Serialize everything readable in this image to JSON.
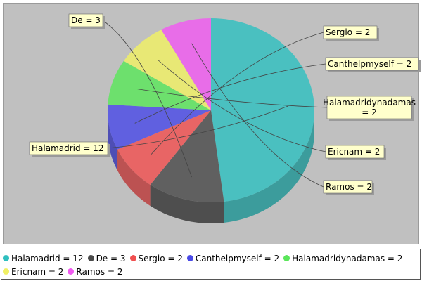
{
  "chart_data": {
    "type": "pie",
    "title": "",
    "slices": [
      {
        "name": "Halamadrid",
        "value": 12,
        "color": "#2fbfbf",
        "label": "Halamadrid = 12"
      },
      {
        "name": "De",
        "value": 3,
        "color": "#4a4a4a",
        "label": "De = 3"
      },
      {
        "name": "Sergio",
        "value": 2,
        "color": "#f05050",
        "label": "Sergio = 2"
      },
      {
        "name": "Canthelpmyself",
        "value": 2,
        "color": "#4a4ae6",
        "label": "Canthelpmyself = 2"
      },
      {
        "name": "Halamadridynadamas",
        "value": 2,
        "color": "#5ae65a",
        "label": "Halamadridynadamas = 2"
      },
      {
        "name": "Ericnam",
        "value": 2,
        "color": "#f0f064",
        "label": "Ericnam = 2"
      },
      {
        "name": "Ramos",
        "value": 2,
        "color": "#f05af0",
        "label": "Ramos = 2"
      }
    ],
    "legend_placement": "bottom",
    "style": "3d"
  },
  "colors": {
    "plot_background": "#c0c0c0",
    "label_background": "#ffffcc"
  }
}
